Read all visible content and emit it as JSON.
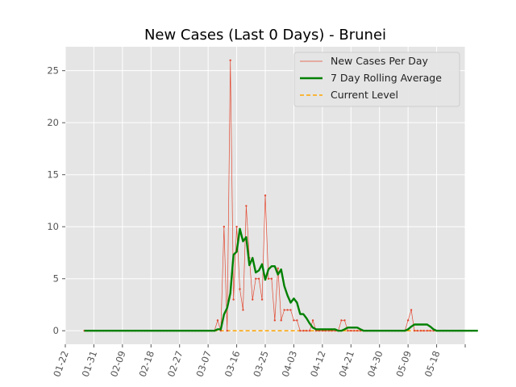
{
  "chart_data": {
    "type": "line",
    "title": "New Cases (Last 0 Days) - Brunei",
    "xlabel": "",
    "ylabel": "",
    "xlim": [
      "2020-01-22",
      "2020-05-27"
    ],
    "ylim": [
      -1.3,
      27.3
    ],
    "grid": true,
    "legend_position": "top-right",
    "x_tick_labels": [
      "01-22",
      "01-31",
      "02-09",
      "02-18",
      "02-27",
      "03-07",
      "03-16",
      "03-25",
      "04-03",
      "04-12",
      "04-21",
      "04-30",
      "05-09",
      "05-18"
    ],
    "y_tick_labels": [
      "0",
      "5",
      "10",
      "15",
      "20",
      "25"
    ],
    "y_tick_values": [
      0,
      5,
      10,
      15,
      20,
      25
    ],
    "start_date": "2020-01-28",
    "series": [
      {
        "name": "New Cases Per Day",
        "style": "thin-line-markers",
        "color": "#e24a33",
        "values": [
          0,
          0,
          0,
          0,
          0,
          0,
          0,
          0,
          0,
          0,
          0,
          0,
          0,
          0,
          0,
          0,
          0,
          0,
          0,
          0,
          0,
          0,
          0,
          0,
          0,
          0,
          0,
          0,
          0,
          0,
          0,
          0,
          0,
          0,
          0,
          0,
          0,
          0,
          0,
          0,
          0,
          0,
          1,
          0,
          10,
          0,
          26,
          3,
          10,
          4,
          2,
          12,
          7,
          3,
          5,
          5,
          3,
          13,
          5,
          5,
          1,
          6,
          1,
          2,
          2,
          2,
          1,
          1,
          0,
          0,
          0,
          0,
          1,
          0,
          0,
          0,
          0,
          0,
          0,
          0,
          0,
          1,
          1,
          0,
          0,
          0,
          0,
          0,
          0,
          0,
          0,
          0,
          0,
          0,
          0,
          0,
          0,
          0,
          0,
          0,
          0,
          0,
          1,
          2,
          0,
          0,
          0,
          0,
          0,
          0,
          0,
          0,
          0,
          0,
          0,
          0,
          0,
          0,
          0,
          0,
          0,
          0,
          0
        ]
      },
      {
        "name": "7 Day Rolling Average",
        "style": "thick-line",
        "color": "#008000",
        "values": [
          0,
          0,
          0,
          0,
          0,
          0,
          0,
          0,
          0,
          0,
          0,
          0,
          0,
          0,
          0,
          0,
          0,
          0,
          0,
          0,
          0,
          0,
          0,
          0,
          0,
          0,
          0,
          0,
          0,
          0,
          0,
          0,
          0,
          0,
          0,
          0,
          0,
          0,
          0,
          0,
          0,
          0,
          0.14,
          0.14,
          1.57,
          2.2,
          3.6,
          7.3,
          7.6,
          9.8,
          8.6,
          9,
          6.3,
          7,
          5.6,
          5.8,
          6.4,
          4.9,
          5.9,
          6.2,
          6.2,
          5.4,
          5.9,
          4.3,
          3.4,
          2.7,
          3.1,
          2.7,
          1.6,
          1.6,
          1.2,
          0.7,
          0.3,
          0.14,
          0.14,
          0.14,
          0.14,
          0.14,
          0.14,
          0.14,
          0,
          0,
          0.14,
          0.3,
          0.3,
          0.3,
          0.3,
          0.14,
          0,
          0,
          0,
          0,
          0,
          0,
          0,
          0,
          0,
          0,
          0,
          0,
          0,
          0,
          0.14,
          0.4,
          0.6,
          0.6,
          0.6,
          0.6,
          0.6,
          0.4,
          0.14,
          0,
          0,
          0,
          0,
          0,
          0,
          0,
          0,
          0,
          0,
          0,
          0,
          0,
          0
        ]
      },
      {
        "name": "Current Level",
        "style": "dashed",
        "color": "#ffa500",
        "values": [
          0
        ]
      }
    ]
  },
  "colors": {
    "axes_background": "#e5e5e5",
    "grid": "#ffffff",
    "figure_background": "#ffffff"
  }
}
